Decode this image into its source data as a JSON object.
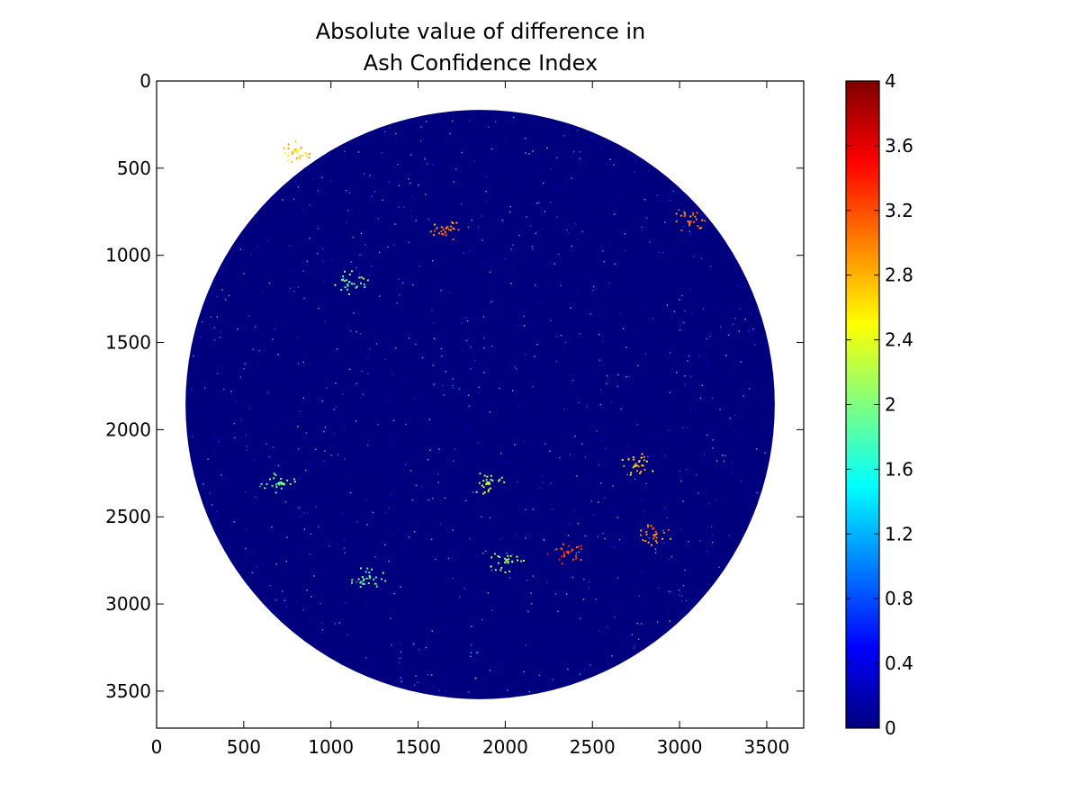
{
  "chart_data": {
    "type": "heatmap",
    "title_lines": [
      "Absolute value of difference in",
      "Ash Confidence Index"
    ],
    "xlim": [
      0,
      3712
    ],
    "ylim": [
      3712,
      0
    ],
    "x_ticks": [
      0,
      500,
      1000,
      1500,
      2000,
      2500,
      3000,
      3500
    ],
    "y_ticks": [
      0,
      500,
      1000,
      1500,
      2000,
      2500,
      3000,
      3500
    ],
    "disk": {
      "center_x": 1856,
      "center_y": 1856,
      "radius": 1690
    },
    "background_value": 0,
    "colormap": "jet",
    "colorbar": {
      "range": [
        0,
        4
      ],
      "ticks": [
        0,
        0.4,
        0.8,
        1.2,
        1.6,
        2,
        2.4,
        2.8,
        3.2,
        3.6,
        4
      ],
      "tick_labels": [
        "0",
        "0.4",
        "0.8",
        "1.2",
        "1.6",
        "2",
        "2.4",
        "2.8",
        "3.2",
        "3.6",
        "4"
      ],
      "placement": "right"
    },
    "hotspots": [
      {
        "x": 1650,
        "y": 850,
        "value": 3.0
      },
      {
        "x": 2750,
        "y": 2200,
        "value": 2.7
      },
      {
        "x": 1900,
        "y": 2300,
        "value": 2.2
      },
      {
        "x": 3050,
        "y": 800,
        "value": 3.0
      },
      {
        "x": 700,
        "y": 2300,
        "value": 2.0
      },
      {
        "x": 1200,
        "y": 2850,
        "value": 2.0
      },
      {
        "x": 2000,
        "y": 2750,
        "value": 2.2
      },
      {
        "x": 2350,
        "y": 2700,
        "value": 3.2
      },
      {
        "x": 2850,
        "y": 2600,
        "value": 3.0
      },
      {
        "x": 800,
        "y": 400,
        "value": 2.7
      },
      {
        "x": 1100,
        "y": 1150,
        "value": 2.0
      }
    ]
  }
}
